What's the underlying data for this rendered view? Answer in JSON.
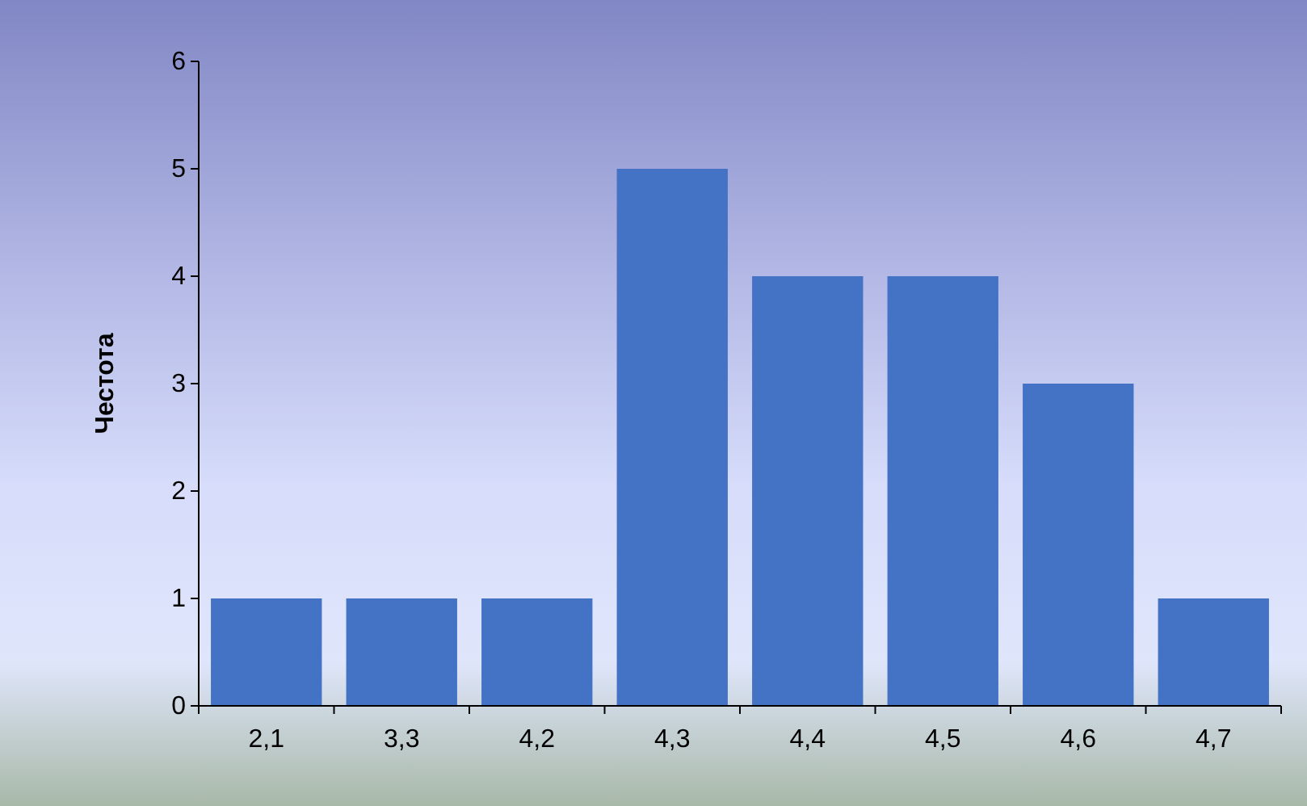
{
  "chart_data": {
    "type": "bar",
    "ylabel": "Честота",
    "categories": [
      "2,1",
      "3,3",
      "4,2",
      "4,3",
      "4,4",
      "4,5",
      "4,6",
      "4,7"
    ],
    "values": [
      1,
      1,
      1,
      5,
      4,
      4,
      3,
      1
    ],
    "color": "#4472c4",
    "ylim": [
      0,
      6
    ],
    "yticks": [
      0,
      1,
      2,
      3,
      4,
      5,
      6
    ],
    "grid": false
  }
}
